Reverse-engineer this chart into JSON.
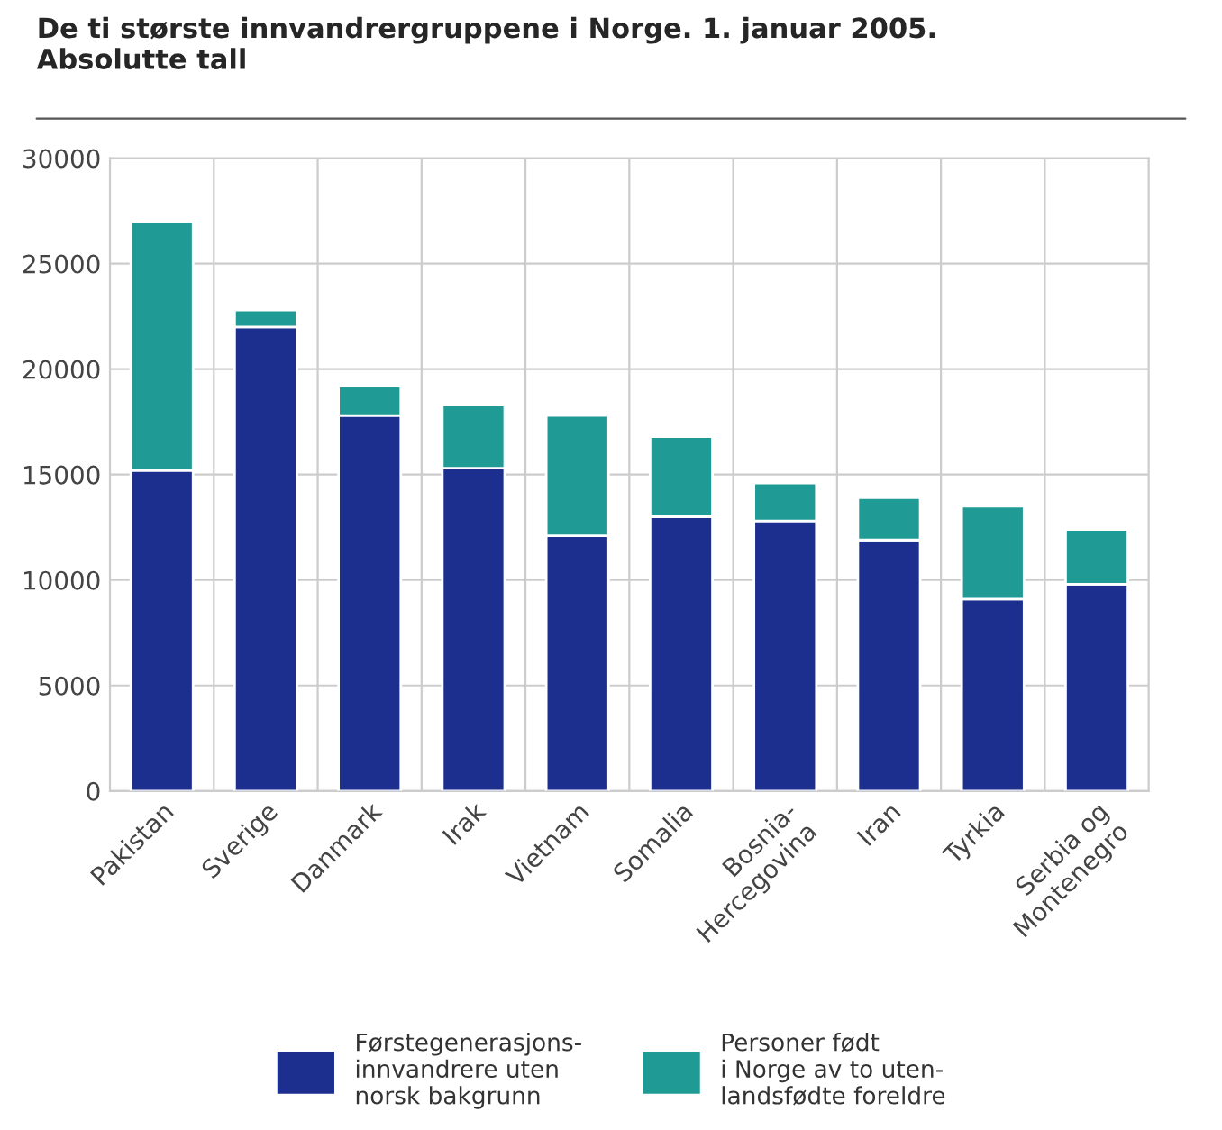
{
  "chart_data": {
    "type": "bar",
    "title": "De ti største innvandrergruppene i Norge. 1. januar 2005.\nAbsolutte tall",
    "categories": [
      "Pakistan",
      "Sverige",
      "Danmark",
      "Irak",
      "Vietnam",
      "Somalia",
      "Bosnia-\nHercegovina",
      "Iran",
      "Tyrkia",
      "Serbia og\nMontenegro"
    ],
    "stacked": true,
    "series": [
      {
        "name": "Førstegenerasjons-\ninnvandrere uten\nnorsk bakgrunn",
        "color": "#1c2f8f",
        "values": [
          15200,
          22000,
          17800,
          15300,
          12100,
          13000,
          12800,
          11900,
          9100,
          9800
        ]
      },
      {
        "name": "Personer født\ni Norge av to uten-\nlandsfødte foreldre",
        "color": "#1f9a95",
        "values": [
          11800,
          800,
          1400,
          3000,
          5700,
          3800,
          1800,
          2000,
          4400,
          2600
        ]
      }
    ],
    "ylim": [
      0,
      30000
    ],
    "yticks": [
      0,
      5000,
      10000,
      15000,
      20000,
      25000,
      30000
    ],
    "grid": true,
    "legend": "bottom"
  }
}
